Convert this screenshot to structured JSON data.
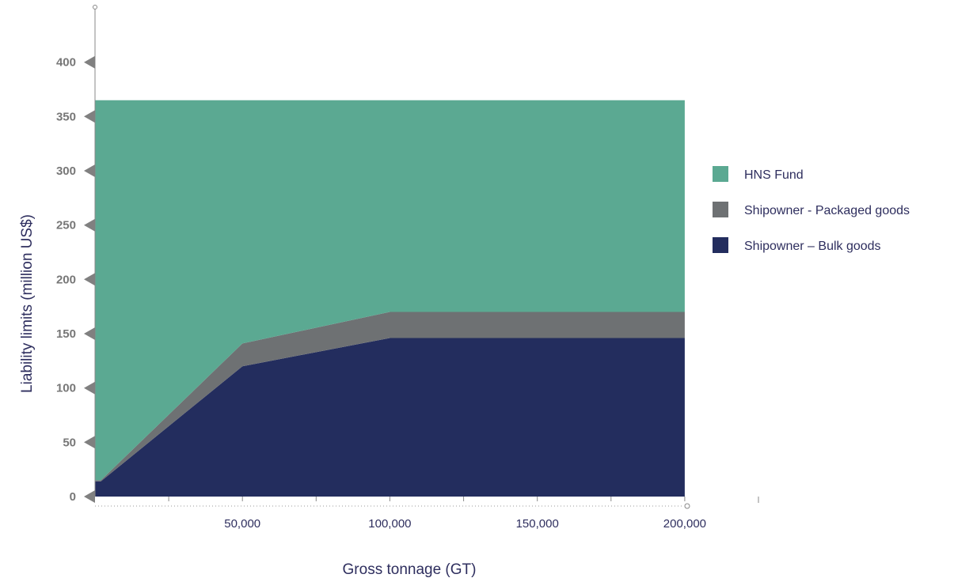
{
  "chart_data": {
    "type": "area",
    "stacked": true,
    "xlabel": "Gross tonnage (GT)",
    "ylabel": "Liability limits (million US$)",
    "x_ticks": [
      50000,
      100000,
      150000,
      200000
    ],
    "x_tick_labels": [
      "50,000",
      "100,000",
      "150,000",
      "200,000"
    ],
    "y_ticks": [
      0,
      50,
      100,
      150,
      200,
      250,
      300,
      350,
      400
    ],
    "y_tick_labels": [
      "0",
      "50",
      "100",
      "150",
      "200",
      "250",
      "300",
      "350",
      "400"
    ],
    "xlim": [
      0,
      225000
    ],
    "ylim": [
      0,
      450
    ],
    "x_data_max": 200000,
    "grid": false,
    "legend_position": "right",
    "series": [
      {
        "name": "Shipowner – Bulk goods",
        "color": "#232d5e",
        "x": [
          0,
          2000,
          50000,
          100000,
          200000
        ],
        "values": [
          14,
          14,
          120,
          146,
          146
        ]
      },
      {
        "name": "Shipowner - Packaged goods",
        "color": "#6e7173",
        "x": [
          0,
          2000,
          50000,
          100000,
          200000
        ],
        "values": [
          1,
          1,
          21,
          24,
          24
        ]
      },
      {
        "name": "HNS Fund",
        "color": "#5ba992",
        "x": [
          0,
          2000,
          50000,
          100000,
          200000
        ],
        "values": [
          350,
          350,
          224,
          195,
          195
        ]
      }
    ],
    "legend_order": [
      "HNS Fund",
      "Shipowner - Packaged goods",
      "Shipowner – Bulk goods"
    ]
  }
}
